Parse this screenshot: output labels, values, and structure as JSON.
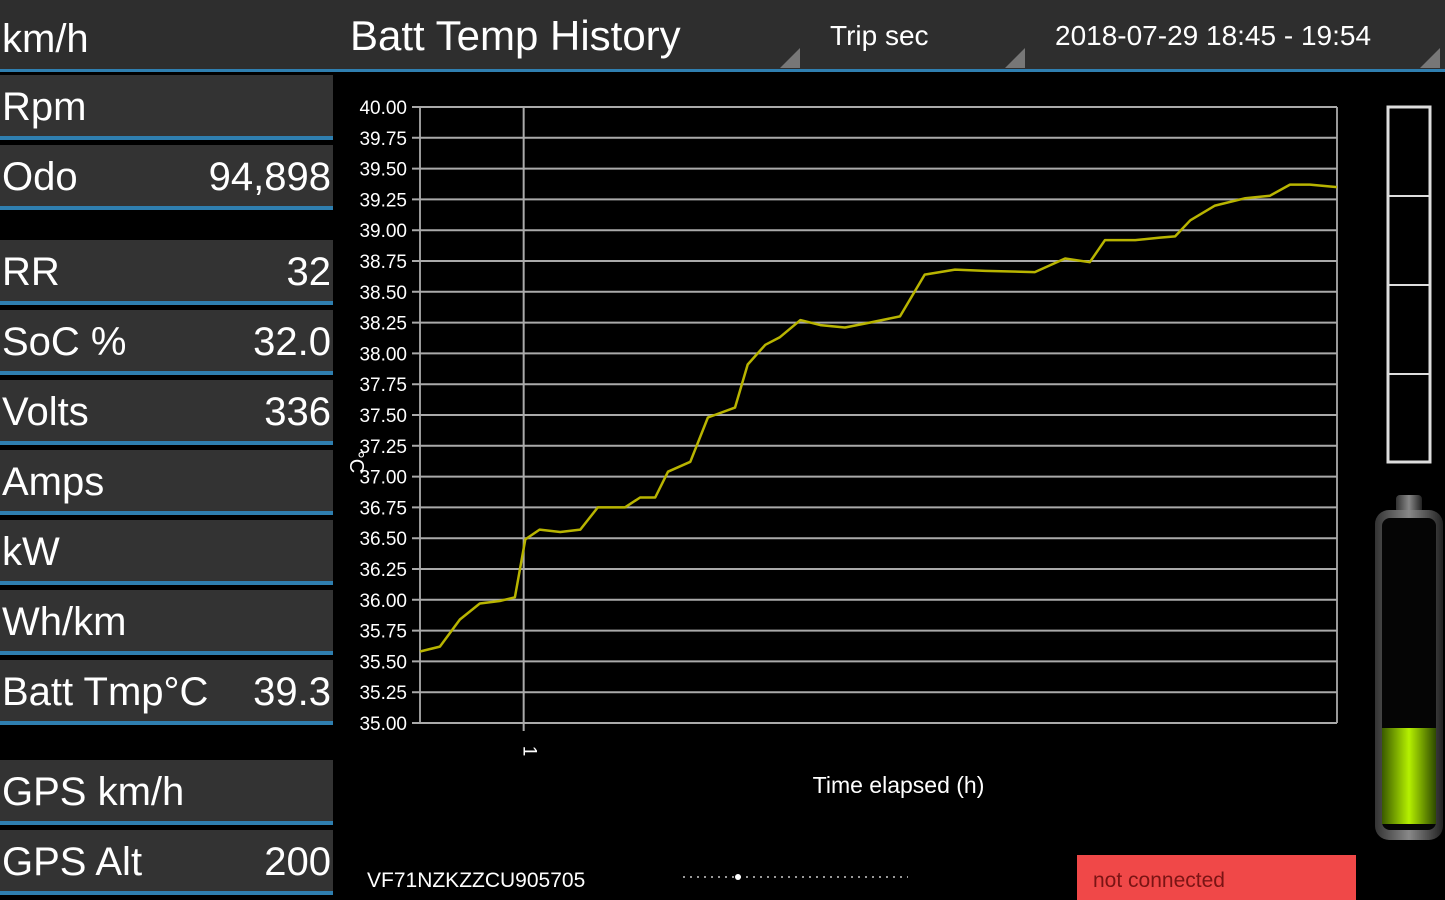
{
  "header": {
    "unit": "km/h",
    "title": "Batt Temp History",
    "mode": "Trip sec",
    "range": "2018-07-29 18:45 - 19:54"
  },
  "readouts": [
    {
      "label": "Rpm"
    },
    {
      "label": "Odo",
      "value": "94,898"
    },
    {
      "label": "RR",
      "value": "32"
    },
    {
      "label": "SoC %",
      "value": "32.0"
    },
    {
      "label": "Volts",
      "value": "336"
    },
    {
      "label": "Amps"
    },
    {
      "label": "kW"
    },
    {
      "label": "Wh/km"
    },
    {
      "label": "Batt Tmp°C",
      "value": "39.3"
    },
    {
      "label": "GPS km/h"
    },
    {
      "label": "GPS Alt",
      "value": "200"
    }
  ],
  "chart_data": {
    "type": "line",
    "ylabel": "°C",
    "xlabel": "Time elapsed (h)",
    "color": "#b8b400",
    "grid": true,
    "xlim": [
      0.87,
      2.02
    ],
    "xticks": [
      1
    ],
    "ylim": [
      35,
      40
    ],
    "yticks": [
      {
        "value": 35,
        "label": "35.00"
      },
      {
        "value": 35.25,
        "label": "35.25"
      },
      {
        "value": 35.5,
        "label": "35.50"
      },
      {
        "value": 35.75,
        "label": "35.75"
      },
      {
        "value": 36,
        "label": "36.00"
      },
      {
        "value": 36.25,
        "label": "36.25"
      },
      {
        "value": 36.5,
        "label": "36.50"
      },
      {
        "value": 36.75,
        "label": "36.75"
      },
      {
        "value": 37,
        "label": "37.00"
      },
      {
        "value": 37.25,
        "label": "37.25"
      },
      {
        "value": 37.5,
        "label": "37.50"
      },
      {
        "value": 37.75,
        "label": "37.75"
      },
      {
        "value": 38,
        "label": "38.00"
      },
      {
        "value": 38.25,
        "label": "38.25"
      },
      {
        "value": 38.5,
        "label": "38.50"
      },
      {
        "value": 38.75,
        "label": "38.75"
      },
      {
        "value": 39,
        "label": "39.00"
      },
      {
        "value": 39.25,
        "label": "39.25"
      },
      {
        "value": 39.5,
        "label": "39.50"
      },
      {
        "value": 39.75,
        "label": "39.75"
      },
      {
        "value": 40,
        "label": "40.00"
      }
    ],
    "x": [
      0.87,
      0.895,
      0.92,
      0.945,
      0.97,
      0.989,
      1.002,
      1.02,
      1.046,
      1.071,
      1.093,
      1.127,
      1.146,
      1.165,
      1.181,
      1.209,
      1.231,
      1.265,
      1.281,
      1.303,
      1.321,
      1.347,
      1.372,
      1.403,
      1.434,
      1.472,
      1.503,
      1.541,
      1.579,
      1.641,
      1.679,
      1.71,
      1.729,
      1.767,
      1.798,
      1.817,
      1.836,
      1.867,
      1.905,
      1.936,
      1.961,
      1.986,
      2.02
    ],
    "values": [
      35.58,
      35.62,
      35.84,
      35.97,
      35.99,
      36.02,
      36.49,
      36.57,
      36.55,
      36.57,
      36.75,
      36.75,
      36.83,
      36.83,
      37.04,
      37.12,
      37.48,
      37.56,
      37.91,
      38.07,
      38.13,
      38.27,
      38.23,
      38.21,
      38.25,
      38.3,
      38.64,
      38.68,
      38.67,
      38.66,
      38.77,
      38.74,
      38.92,
      38.92,
      38.94,
      38.95,
      39.08,
      39.2,
      39.26,
      39.28,
      39.37,
      39.37,
      39.35
    ]
  },
  "footer": {
    "vin": "VF71NZKZZCU905705",
    "status": "not connected"
  }
}
